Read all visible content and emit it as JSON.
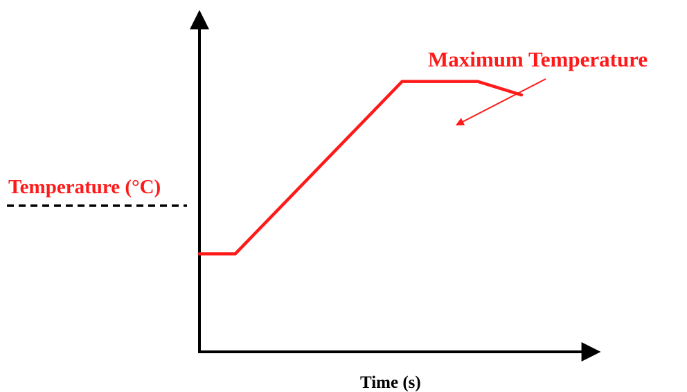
{
  "chart_data": {
    "type": "line",
    "title": "",
    "xlabel": "Time (s)",
    "ylabel": "Temperature (°C)",
    "grid": false,
    "axis_ticks": false,
    "annotation": "Maximum Temperature",
    "colors": {
      "series": "#ff1a1a",
      "label": "#ff1a1a",
      "axis": "#000000",
      "dashed": "#000000"
    },
    "series": [
      {
        "values_note_free": true,
        "x": [
          0,
          0.09,
          0.51,
          0.7,
          0.81
        ],
        "y": [
          0.29,
          0.29,
          0.8,
          0.8,
          0.76
        ]
      }
    ]
  }
}
